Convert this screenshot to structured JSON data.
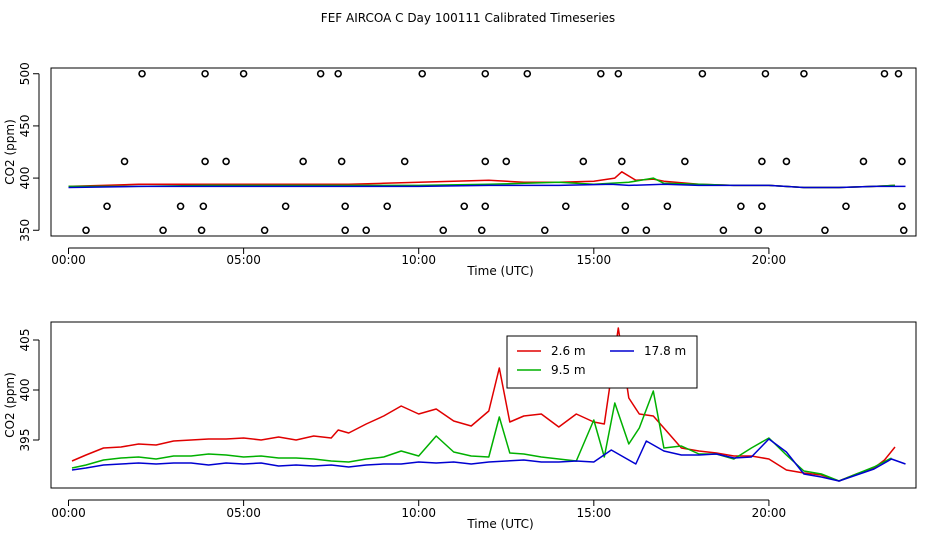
{
  "title": "FEF AIRCOA C  Day 100111  Calibrated Timeseries",
  "colors": {
    "red": "#e00000",
    "green": "#00b000",
    "blue": "#0000d0",
    "outlier": "#000000"
  },
  "chart_data": [
    {
      "type": "line+scatter",
      "xlabel": "Time (UTC)",
      "ylabel": "CO2 (ppm)",
      "xlim": [
        -0.5,
        24.2
      ],
      "ylim": [
        344.5,
        505.5
      ],
      "xticks": [
        0,
        5,
        10,
        15,
        20
      ],
      "xtick_labels": [
        "00:00",
        "05:00",
        "10:00",
        "15:00",
        "20:00"
      ],
      "yticks": [
        350,
        400,
        450,
        500
      ],
      "ytick_labels": [
        "350",
        "400",
        "450",
        "500"
      ],
      "series": [
        {
          "color": "red",
          "x": [
            0,
            1,
            2,
            3,
            4,
            5,
            6,
            7,
            8,
            9,
            10,
            11,
            12,
            13,
            14,
            15,
            15.6,
            15.8,
            16.2,
            16.7,
            17,
            18,
            19,
            20,
            21,
            22,
            23,
            23.6
          ],
          "y": [
            392,
            393,
            394,
            394,
            394,
            394,
            394,
            394,
            394,
            395,
            396,
            397,
            398,
            396,
            396,
            397,
            400,
            406,
            398,
            399,
            397,
            394,
            393,
            393,
            391,
            391,
            392,
            393
          ]
        },
        {
          "color": "green",
          "x": [
            0,
            2,
            4,
            6,
            8,
            10,
            12,
            14,
            15,
            16,
            16.7,
            17,
            18,
            19,
            20,
            21,
            22,
            23,
            23.6
          ],
          "y": [
            392,
            392,
            393,
            393,
            393,
            393,
            394,
            396,
            394,
            396,
            400,
            395,
            394,
            393,
            393,
            391,
            391,
            392,
            393
          ]
        },
        {
          "color": "blue",
          "x": [
            0,
            2,
            4,
            6,
            8,
            10,
            12,
            14,
            15.5,
            16,
            17,
            18,
            19,
            20,
            21,
            22,
            23,
            23.9
          ],
          "y": [
            391,
            392,
            392,
            392,
            392,
            392,
            393,
            393,
            394,
            393,
            394,
            393,
            393,
            393,
            391,
            391,
            392,
            392
          ]
        }
      ],
      "outliers": {
        "x": [
          0.5,
          1.1,
          1.6,
          2.1,
          2.7,
          3.2,
          3.8,
          3.85,
          3.9,
          3.9,
          4.5,
          5.0,
          5.6,
          6.2,
          6.7,
          7.2,
          7.7,
          7.8,
          7.9,
          7.9,
          8.5,
          9.1,
          9.6,
          10.1,
          10.7,
          11.3,
          11.8,
          11.9,
          11.9,
          11.9,
          12.5,
          13.1,
          13.6,
          14.2,
          14.7,
          15.2,
          15.7,
          15.8,
          15.9,
          15.9,
          16.5,
          17.1,
          17.6,
          18.1,
          18.7,
          19.2,
          19.7,
          19.8,
          19.8,
          19.9,
          20.5,
          21.0,
          21.6,
          22.2,
          22.7,
          23.3,
          23.7,
          23.8,
          23.8,
          23.85
        ],
        "y": [
          350,
          373,
          416,
          500,
          350,
          373,
          350,
          373,
          416,
          500,
          416,
          500,
          350,
          373,
          416,
          500,
          500,
          416,
          373,
          350,
          350,
          373,
          416,
          500,
          350,
          373,
          350,
          373,
          416,
          500,
          416,
          500,
          350,
          373,
          416,
          500,
          500,
          416,
          373,
          350,
          350,
          373,
          416,
          500,
          350,
          373,
          350,
          373,
          416,
          500,
          416,
          500,
          350,
          373,
          416,
          500,
          500,
          416,
          373,
          350
        ]
      }
    },
    {
      "type": "line",
      "xlabel": "Time (UTC)",
      "ylabel": "CO2 (ppm)",
      "xlim": [
        -0.5,
        24.2
      ],
      "ylim": [
        390.2,
        406.8
      ],
      "xticks": [
        0,
        5,
        10,
        15,
        20
      ],
      "xtick_labels": [
        "00:00",
        "05:00",
        "10:00",
        "15:00",
        "20:00"
      ],
      "yticks": [
        395,
        400,
        405
      ],
      "ytick_labels": [
        "395",
        "400",
        "405"
      ],
      "legend": {
        "placement": "top-center"
      },
      "series": [
        {
          "name": "2.6 m",
          "color": "red",
          "x": [
            0.1,
            0.5,
            1,
            1.5,
            2,
            2.5,
            3,
            3.5,
            4,
            4.5,
            5,
            5.5,
            6,
            6.5,
            7,
            7.5,
            7.7,
            8,
            8.5,
            9,
            9.5,
            10,
            10.5,
            11,
            11.5,
            12,
            12.3,
            12.6,
            13,
            13.5,
            14,
            14.5,
            15,
            15.3,
            15.7,
            16,
            16.3,
            16.7,
            17,
            17.5,
            18,
            18.5,
            19,
            19.5,
            20,
            20.5,
            21,
            21.5,
            22,
            22.5,
            23,
            23.3,
            23.6
          ],
          "y": [
            392.9,
            393.5,
            394.2,
            394.3,
            394.6,
            394.5,
            394.9,
            395.0,
            395.1,
            395.1,
            395.2,
            395.0,
            395.3,
            395.0,
            395.4,
            395.2,
            396.0,
            395.7,
            396.6,
            397.4,
            398.4,
            397.6,
            398.1,
            396.9,
            396.4,
            397.9,
            402.2,
            396.8,
            397.4,
            397.6,
            396.3,
            397.6,
            396.8,
            396.6,
            406.2,
            399.2,
            397.6,
            397.4,
            396.2,
            394.2,
            393.9,
            393.7,
            393.4,
            393.4,
            393.1,
            392.0,
            391.7,
            391.5,
            390.9,
            391.6,
            392.2,
            393.0,
            394.3
          ]
        },
        {
          "name": "9.5 m",
          "color": "green",
          "x": [
            0.1,
            0.5,
            1,
            1.5,
            2,
            2.5,
            3,
            3.5,
            4,
            4.5,
            5,
            5.5,
            6,
            6.5,
            7,
            7.5,
            8,
            8.5,
            9,
            9.5,
            10,
            10.5,
            11,
            11.5,
            12,
            12.3,
            12.6,
            13,
            13.5,
            14,
            14.5,
            15,
            15.3,
            15.6,
            16,
            16.3,
            16.7,
            17,
            17.5,
            18,
            18.5,
            19,
            19.5,
            20,
            20.5,
            21,
            21.5,
            22,
            22.5,
            23,
            23.5
          ],
          "y": [
            392.2,
            392.5,
            393.0,
            393.2,
            393.3,
            393.1,
            393.4,
            393.4,
            393.6,
            393.5,
            393.3,
            393.4,
            393.2,
            393.2,
            393.1,
            392.9,
            392.8,
            393.1,
            393.3,
            393.9,
            393.4,
            395.4,
            393.8,
            393.4,
            393.3,
            397.3,
            393.7,
            393.6,
            393.3,
            393.1,
            392.9,
            397.0,
            393.3,
            398.7,
            394.6,
            396.2,
            399.9,
            394.2,
            394.4,
            393.6,
            393.6,
            393.1,
            394.2,
            395.2,
            393.5,
            391.9,
            391.6,
            390.9,
            391.6,
            392.3,
            393.2
          ]
        },
        {
          "name": "17.8 m",
          "color": "blue",
          "x": [
            0.1,
            0.5,
            1,
            1.5,
            2,
            2.5,
            3,
            3.5,
            4,
            4.5,
            5,
            5.5,
            6,
            6.5,
            7,
            7.5,
            8,
            8.5,
            9,
            9.5,
            10,
            10.5,
            11,
            11.5,
            12,
            12.5,
            13,
            13.5,
            14,
            14.5,
            15,
            15.5,
            15.8,
            16.2,
            16.5,
            17,
            17.5,
            18,
            18.5,
            19,
            19.5,
            20,
            20.5,
            21,
            21.5,
            22,
            22.5,
            23,
            23.5,
            23.9
          ],
          "y": [
            392.0,
            392.2,
            392.5,
            392.6,
            392.7,
            392.6,
            392.7,
            392.7,
            392.5,
            392.7,
            392.6,
            392.7,
            392.4,
            392.5,
            392.4,
            392.5,
            392.3,
            392.5,
            392.6,
            392.6,
            392.8,
            392.7,
            392.8,
            392.6,
            392.8,
            392.9,
            393.0,
            392.8,
            392.8,
            392.9,
            392.8,
            394.0,
            393.4,
            392.6,
            394.9,
            393.9,
            393.5,
            393.5,
            393.6,
            393.2,
            393.3,
            395.1,
            393.8,
            391.6,
            391.3,
            390.9,
            391.5,
            392.1,
            393.1,
            392.6
          ]
        }
      ]
    }
  ]
}
